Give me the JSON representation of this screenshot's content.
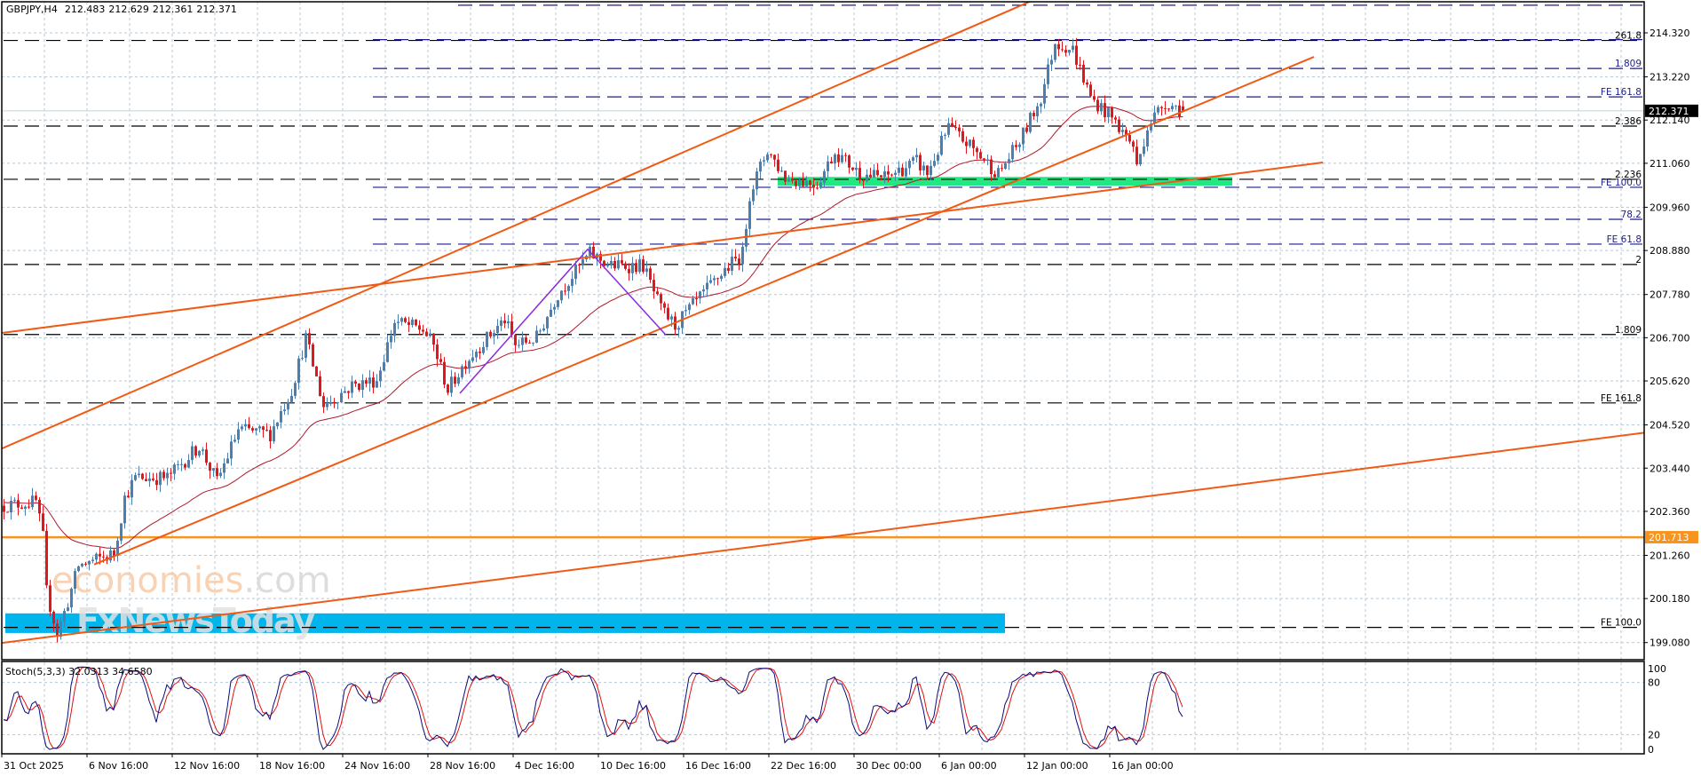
{
  "header": {
    "symbol": "GBPJPY,H4",
    "open": "212.483",
    "high": "212.629",
    "low": "212.361",
    "close": "212.371"
  },
  "watermark": {
    "brand_a": "economies",
    "brand_b": ".com",
    "brand_2": "FxNewsToday"
  },
  "colors": {
    "bull": "#4a7fb0",
    "bear": "#e0181e",
    "ma": "#b0182a",
    "trendline": "#f05a14",
    "support_line": "#f7931e",
    "fib_navy": "#1c1c8c",
    "fib_black": "#000000",
    "green_zone": "#22e882",
    "blue_zone": "#00b4ec",
    "zigzag": "#8a2be2",
    "grid": "#b8c8d4",
    "stoch_main": "#0a0a7a",
    "stoch_signal": "#e01010"
  },
  "chart_data": {
    "type": "candlestick",
    "title": "GBPJPY,H4",
    "bars_total": 333,
    "last_bar": {
      "open": 212.483,
      "high": 212.629,
      "low": 212.361,
      "close": 212.371
    },
    "price_waypoints": [
      [
        0,
        202.5
      ],
      [
        9,
        202.6
      ],
      [
        11,
        201.7
      ],
      [
        12,
        200.35
      ],
      [
        15,
        199.3
      ],
      [
        18,
        200.1
      ],
      [
        21,
        201.0
      ],
      [
        31,
        201.3
      ],
      [
        34,
        202.7
      ],
      [
        37,
        203.2
      ],
      [
        46,
        203.2
      ],
      [
        55,
        204.0
      ],
      [
        60,
        203.1
      ],
      [
        66,
        204.4
      ],
      [
        75,
        204.3
      ],
      [
        81,
        205.4
      ],
      [
        85,
        206.7
      ],
      [
        90,
        205.0
      ],
      [
        98,
        205.5
      ],
      [
        105,
        205.65
      ],
      [
        110,
        207.1
      ],
      [
        118,
        206.9
      ],
      [
        121,
        206.5
      ],
      [
        125,
        205.4
      ],
      [
        130,
        206.1
      ],
      [
        134,
        206.5
      ],
      [
        141,
        207.15
      ],
      [
        144,
        206.5
      ],
      [
        150,
        206.7
      ],
      [
        156,
        207.8
      ],
      [
        165,
        208.8
      ],
      [
        171,
        208.5
      ],
      [
        180,
        208.5
      ],
      [
        185,
        207.4
      ],
      [
        189,
        207.0
      ],
      [
        196,
        207.7
      ],
      [
        203,
        208.4
      ],
      [
        208,
        208.8
      ],
      [
        210,
        210.3
      ],
      [
        215,
        211.4
      ],
      [
        220,
        210.7
      ],
      [
        229,
        210.55
      ],
      [
        234,
        211.35
      ],
      [
        241,
        210.8
      ],
      [
        248,
        210.7
      ],
      [
        257,
        211.1
      ],
      [
        260,
        210.8
      ],
      [
        266,
        211.95
      ],
      [
        272,
        211.5
      ],
      [
        280,
        210.8
      ],
      [
        286,
        211.6
      ],
      [
        292,
        212.7
      ],
      [
        296,
        214.1
      ],
      [
        301,
        213.9
      ],
      [
        306,
        212.7
      ],
      [
        312,
        212.2
      ],
      [
        318,
        211.5
      ],
      [
        319,
        210.95
      ],
      [
        322,
        212.0
      ],
      [
        327,
        212.6
      ],
      [
        332,
        212.371
      ]
    ],
    "moving_average": {
      "type": "EMA",
      "period": 40,
      "seed": 202.6
    },
    "price_axis": {
      "ticks": [
        "214.320",
        "213.220",
        "212.140",
        "211.060",
        "209.960",
        "208.880",
        "207.780",
        "206.700",
        "205.620",
        "204.520",
        "203.440",
        "202.360",
        "201.260",
        "200.180",
        "199.080"
      ],
      "current_price": "212.371",
      "support_price": "201.713"
    },
    "time_axis": {
      "labels": [
        "31 Oct 2025",
        "6 Nov 16:00",
        "12 Nov 16:00",
        "18 Nov 16:00",
        "24 Nov 16:00",
        "28 Nov 16:00",
        "4 Dec 16:00",
        "10 Dec 16:00",
        "16 Dec 16:00",
        "22 Dec 16:00",
        "30 Dec 00:00",
        "6 Jan 00:00",
        "12 Jan 00:00",
        "16 Jan 00:00"
      ],
      "bars_per_label": 24
    },
    "levels": [
      {
        "price": 215.01,
        "label": "",
        "color": "navy",
        "from_bar": 128
      },
      {
        "price": 214.13,
        "label": "261.8",
        "color": "black",
        "from_bar": 0
      },
      {
        "price": 214.15,
        "label": "",
        "color": "navy",
        "from_bar": 104
      },
      {
        "price": 213.43,
        "label": "1.809",
        "color": "navy",
        "from_bar": 104
      },
      {
        "price": 212.72,
        "label": "FE 161.8",
        "color": "navy",
        "from_bar": 104
      },
      {
        "price": 211.99,
        "label": "2.386",
        "color": "black",
        "from_bar": 0
      },
      {
        "price": 210.66,
        "label": "2.236",
        "color": "black",
        "from_bar": 0
      },
      {
        "price": 210.46,
        "label": "FE 100.0",
        "color": "navy",
        "from_bar": 104
      },
      {
        "price": 209.66,
        "label": "78.2",
        "color": "navy",
        "from_bar": 104
      },
      {
        "price": 209.04,
        "label": "FE 61.8",
        "color": "navy",
        "from_bar": 104
      },
      {
        "price": 208.53,
        "label": "2",
        "color": "black",
        "from_bar": 0
      },
      {
        "price": 206.78,
        "label": "1.809",
        "color": "black",
        "from_bar": 0
      },
      {
        "price": 205.07,
        "label": "FE 161.8",
        "color": "black",
        "from_bar": 0
      },
      {
        "price": 199.46,
        "label": "FE 100.0",
        "color": "black",
        "from_bar": 0
      }
    ],
    "trendlines": [
      {
        "from": [
          -0.5,
          203.93
        ],
        "to": [
          290,
          215.14
        ]
      },
      {
        "from": [
          25.5,
          201.03
        ],
        "to": [
          369,
          213.72
        ]
      },
      {
        "from": [
          -0.5,
          206.82
        ],
        "to": [
          371.5,
          211.08
        ]
      },
      {
        "from": [
          -0.5,
          199.07
        ],
        "to": [
          462.5,
          204.33
        ]
      }
    ],
    "zigzag": [
      [
        128.5,
        205.31
      ],
      [
        164.5,
        208.91
      ],
      [
        186.5,
        206.77
      ]
    ],
    "zones": [
      {
        "name": "green-zone",
        "from_bar": 218,
        "to_bar": 346,
        "top": 210.72,
        "bottom": 210.5,
        "color": "green"
      },
      {
        "name": "blue-zone",
        "from_bar": 0.5,
        "to_bar": 282,
        "top": 199.81,
        "bottom": 199.32,
        "color": "blue"
      }
    ],
    "stochastic": {
      "label": "Stoch(5,3,3) 32.0313 34.6580",
      "k": 5,
      "d": 3,
      "slowing": 3,
      "levels": [
        "100",
        "80",
        "20",
        "0"
      ]
    }
  }
}
